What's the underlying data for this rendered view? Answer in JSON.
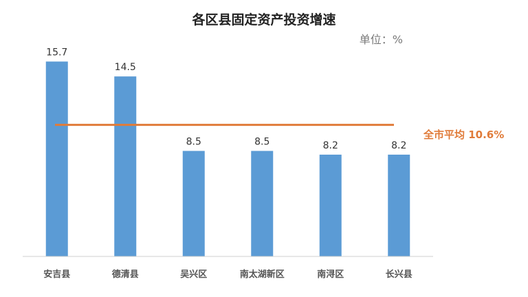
{
  "chart_data": {
    "type": "bar",
    "title": "各区县固定资产投资增速",
    "unit": "单位：%",
    "categories": [
      "安吉县",
      "德清县",
      "吴兴区",
      "南太湖新区",
      "南浔区",
      "长兴县"
    ],
    "values": [
      15.7,
      14.5,
      8.5,
      8.5,
      8.2,
      8.2
    ],
    "value_labels": [
      "15.7",
      "14.5",
      "8.5",
      "8.5",
      "8.2",
      "8.2"
    ],
    "reference_line": {
      "value": 10.6,
      "label": "全市平均 10.6%"
    },
    "ylim": [
      0,
      17.5
    ],
    "grid": false,
    "legend": "none",
    "colors": {
      "bar": "#5b9bd5",
      "line": "#e07b39",
      "axis": "#cfcfcf",
      "text": "#333333",
      "tick": "#555555"
    }
  }
}
